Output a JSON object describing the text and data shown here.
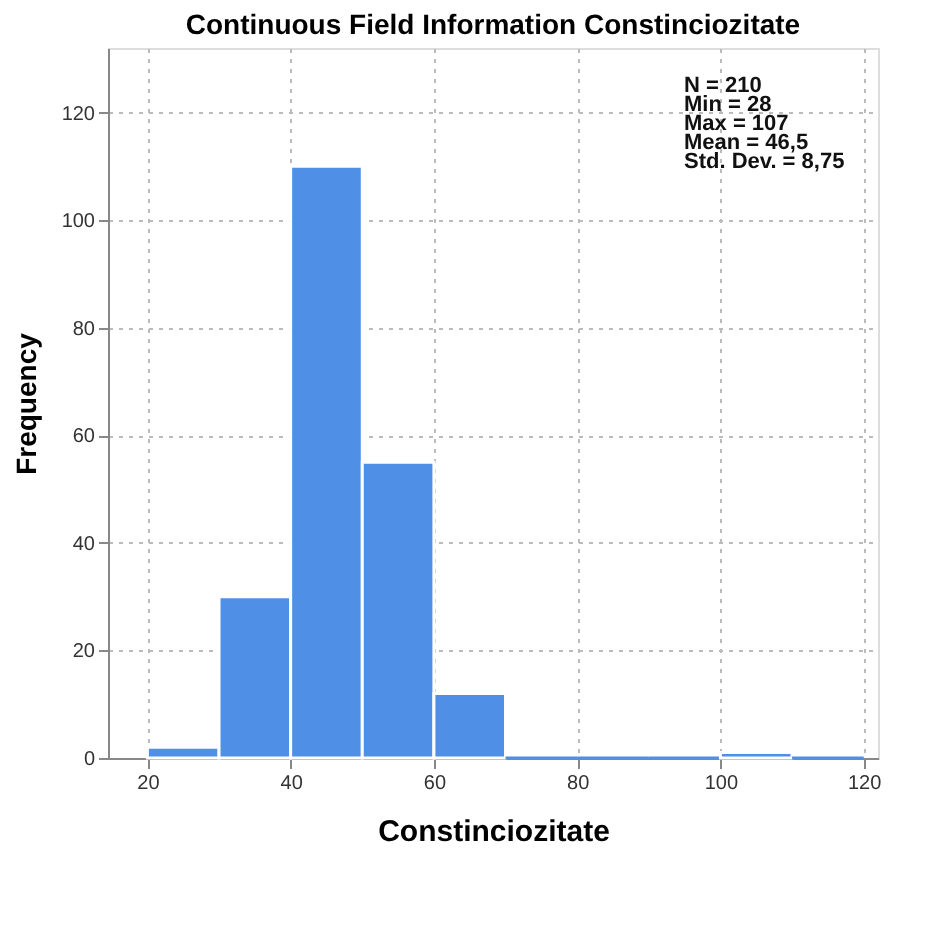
{
  "chart_data": {
    "type": "histogram",
    "title": "Continuous Field Information Constinciozitate",
    "xlabel": "Constinciozitate",
    "ylabel": "Frequency",
    "bins": [
      20,
      30,
      40,
      50,
      60,
      70,
      80,
      90,
      100,
      110,
      120
    ],
    "values": [
      2,
      30,
      110,
      55,
      12,
      0,
      0,
      0,
      1,
      0
    ],
    "color": "#4f8fe6",
    "xlim": [
      14.5,
      122
    ],
    "xticks": [
      20,
      40,
      60,
      80,
      100,
      120
    ],
    "ylim": [
      0,
      132
    ],
    "yticks": [
      0,
      20,
      40,
      60,
      80,
      100,
      120
    ],
    "grid": true,
    "annotations": [
      "N = 210",
      "Min = 28",
      "Max = 107",
      "Mean = 46,5",
      "Std. Dev. = 8,75"
    ]
  }
}
